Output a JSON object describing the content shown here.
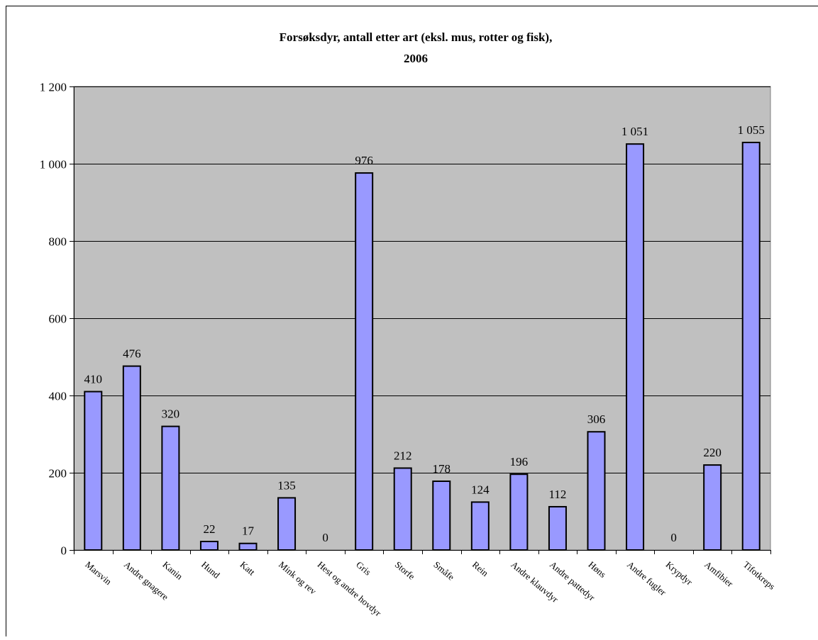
{
  "chart_data": {
    "type": "bar",
    "title_lines": [
      "Forsøksdyr, antall etter art (eksl. mus, rotter og fisk),",
      "2006"
    ],
    "xlabel": "",
    "ylabel": "",
    "categories": [
      "Marsvin",
      "Andre gnagere",
      "Kanin",
      "Hund",
      "Katt",
      "Mink og rev",
      "Hest og andre hovdyr",
      "Gris",
      "Storfe",
      "Småfe",
      "Rein",
      "Andre klauvdyr",
      "Andre pattedyr",
      "Høns",
      "Andre fugler",
      "Krypdyr",
      "Amfibier",
      "Tifotkreps"
    ],
    "values": [
      410,
      476,
      320,
      22,
      17,
      135,
      0,
      976,
      212,
      178,
      124,
      196,
      112,
      306,
      1051,
      0,
      220,
      1055
    ],
    "data_labels": [
      "410",
      "476",
      "320",
      "22",
      "17",
      "135",
      "0",
      "976",
      "212",
      "178",
      "124",
      "196",
      "112",
      "306",
      "1 051",
      "0",
      "220",
      "1 055"
    ],
    "ylim": [
      0,
      1200
    ],
    "y_ticks": [
      0,
      200,
      400,
      600,
      800,
      1000,
      1200
    ],
    "y_tick_labels": [
      "0",
      "200",
      "400",
      "600",
      "800",
      "1 000",
      "1 200"
    ],
    "grid": true,
    "legend": "none",
    "colors": {
      "plot_background": "#c0c0c0",
      "bar_fill": "#9999ff",
      "bar_stroke": "#000000",
      "gridline": "#000000",
      "page_background": "#ffffff"
    }
  }
}
